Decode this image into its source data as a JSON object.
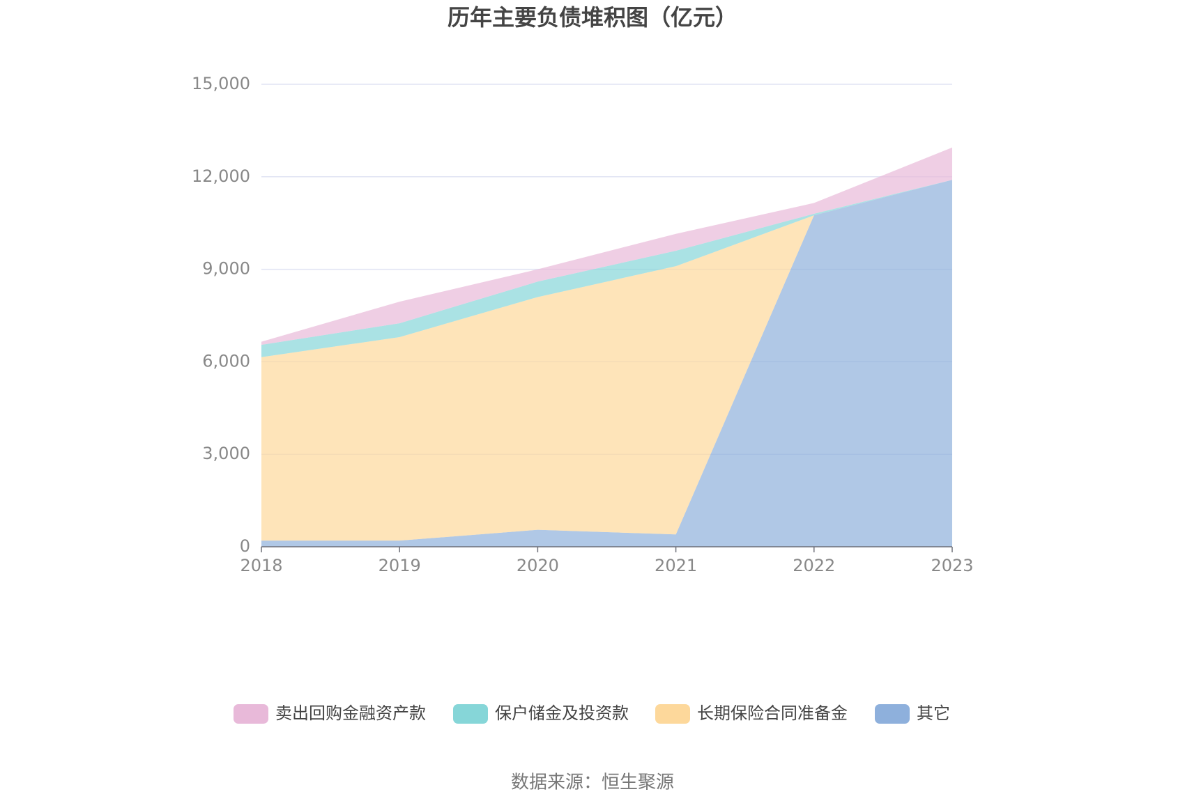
{
  "chart_data": {
    "type": "stacked-area",
    "title": "历年主要负债堆积图（亿元）",
    "source": "数据来源：恒生聚源",
    "categories": [
      "2018",
      "2019",
      "2020",
      "2021",
      "2022",
      "2023"
    ],
    "series": [
      {
        "name": "卖出回购金融资产款",
        "color": "#e8b9d9",
        "values": [
          100,
          700,
          400,
          550,
          350,
          1050
        ]
      },
      {
        "name": "保户储金及投资款",
        "color": "#86d6d8",
        "values": [
          400,
          450,
          500,
          500,
          50,
          0
        ]
      },
      {
        "name": "长期保险合同准备金",
        "color": "#fdd89b",
        "values": [
          5950,
          6600,
          7550,
          8700,
          0,
          0
        ]
      },
      {
        "name": "其它",
        "color": "#8eb0dc",
        "values": [
          200,
          200,
          550,
          400,
          10750,
          11900
        ]
      }
    ],
    "ylim": [
      0,
      15000
    ],
    "yticks": [
      0,
      {
        "value": 3000,
        "label": "3,000"
      },
      {
        "value": 6000,
        "label": "6,000"
      },
      {
        "value": 9000,
        "label": "9,000"
      },
      {
        "value": 12000,
        "label": "12,000"
      },
      {
        "value": 15000,
        "label": "15,000"
      }
    ],
    "grid": true
  }
}
